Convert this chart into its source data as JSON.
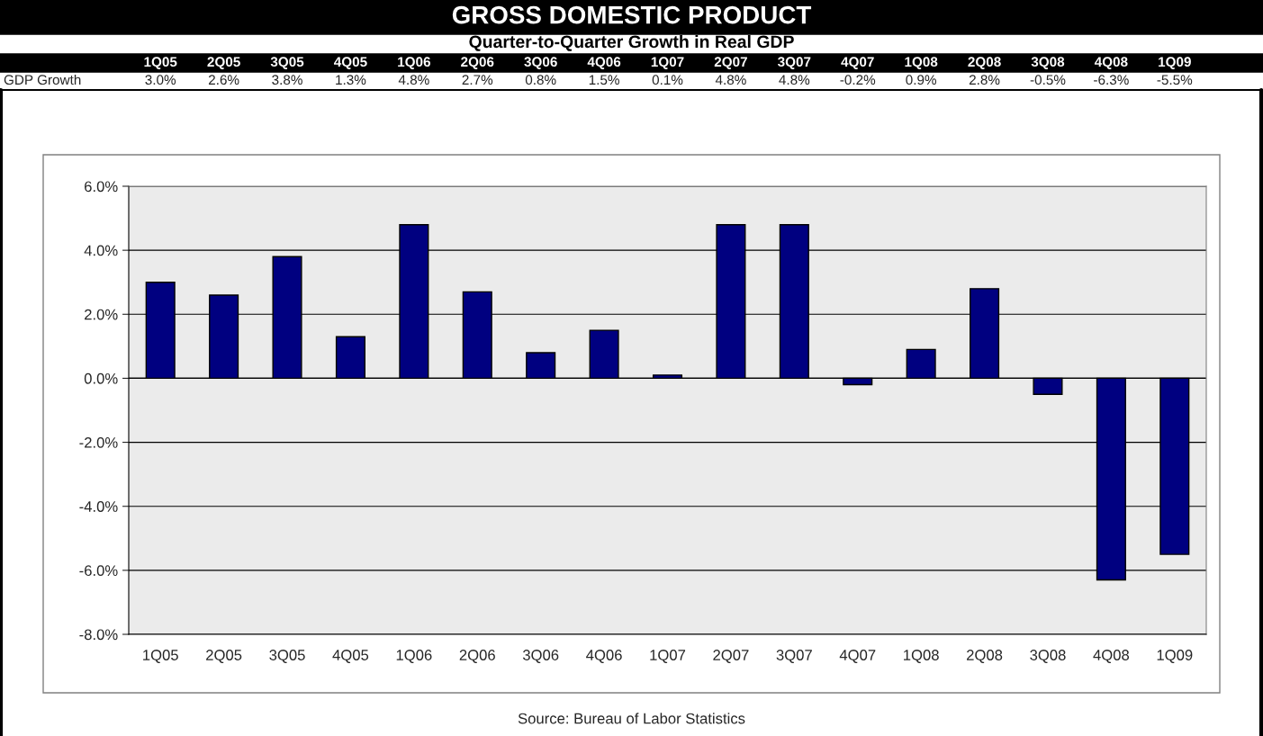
{
  "chart_data": {
    "type": "bar",
    "title": "GROSS DOMESTIC PRODUCT",
    "subtitle": "Quarter-to-Quarter Growth in Real GDP",
    "categories": [
      "1Q05",
      "2Q05",
      "3Q05",
      "4Q05",
      "1Q06",
      "2Q06",
      "3Q06",
      "4Q06",
      "1Q07",
      "2Q07",
      "3Q07",
      "4Q07",
      "1Q08",
      "2Q08",
      "3Q08",
      "4Q08",
      "1Q09"
    ],
    "series": [
      {
        "name": "GDP Growth",
        "color": "#000080",
        "values": [
          3.0,
          2.6,
          3.8,
          1.3,
          4.8,
          2.7,
          0.8,
          1.5,
          0.1,
          4.8,
          4.8,
          -0.2,
          0.9,
          2.8,
          -0.5,
          -6.3,
          -5.5
        ],
        "value_labels": [
          "3.0%",
          "2.6%",
          "3.8%",
          "1.3%",
          "4.8%",
          "2.7%",
          "0.8%",
          "1.5%",
          "0.1%",
          "4.8%",
          "4.8%",
          "-0.2%",
          "0.9%",
          "2.8%",
          "-0.5%",
          "-6.3%",
          "-5.5%"
        ]
      }
    ],
    "ylim": [
      -8,
      6
    ],
    "yticks": [
      {
        "value": -8,
        "label": "-8.0%"
      },
      {
        "value": -6,
        "label": "-6.0%"
      },
      {
        "value": -4,
        "label": "-4.0%"
      },
      {
        "value": -2,
        "label": "-2.0%"
      },
      {
        "value": 0,
        "label": "0.0%"
      },
      {
        "value": 2,
        "label": "2.0%"
      },
      {
        "value": 4,
        "label": "4.0%"
      },
      {
        "value": 6,
        "label": "6.0%"
      }
    ],
    "grid": "y",
    "annotations": [
      "Source: Bureau of Labor Statistics"
    ]
  }
}
